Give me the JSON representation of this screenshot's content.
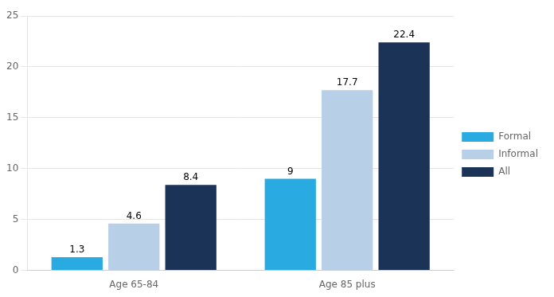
{
  "chart_data": {
    "type": "bar",
    "categories": [
      "Age 65-84",
      "Age 85 plus"
    ],
    "series": [
      {
        "name": "Formal",
        "color": "#29abe2",
        "values": [
          1.3,
          9.0
        ]
      },
      {
        "name": "Informal",
        "color": "#b8cfe8",
        "values": [
          4.6,
          17.7
        ]
      },
      {
        "name": "All",
        "color": "#1b3357",
        "values": [
          8.4,
          22.4
        ]
      }
    ],
    "ylim": [
      0,
      25
    ],
    "yticks": [
      0,
      5,
      10,
      15,
      20,
      25
    ],
    "grid": true,
    "legend": "right",
    "data_labels": true
  }
}
